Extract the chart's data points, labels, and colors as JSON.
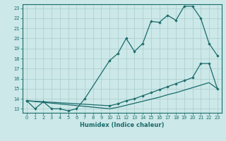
{
  "xlabel": "Humidex (Indice chaleur)",
  "background_color": "#cce8e8",
  "grid_color": "#aacccc",
  "line_color": "#1a6b6b",
  "xlim": [
    -0.5,
    23.5
  ],
  "ylim": [
    12.6,
    23.4
  ],
  "xticks": [
    0,
    1,
    2,
    3,
    4,
    5,
    6,
    7,
    8,
    9,
    10,
    11,
    12,
    13,
    14,
    15,
    16,
    17,
    18,
    19,
    20,
    21,
    22,
    23
  ],
  "yticks": [
    13,
    14,
    15,
    16,
    17,
    18,
    19,
    20,
    21,
    22,
    23
  ],
  "line1_x": [
    0,
    1,
    2,
    3,
    4,
    5,
    6,
    7,
    10,
    11,
    12,
    13,
    14,
    15,
    16,
    17,
    18,
    19,
    20,
    21,
    22,
    23
  ],
  "line1_y": [
    13.8,
    13.0,
    13.7,
    13.0,
    13.0,
    12.8,
    13.0,
    14.0,
    17.8,
    18.5,
    20.0,
    18.7,
    19.5,
    21.7,
    21.6,
    22.3,
    21.8,
    23.2,
    23.2,
    22.0,
    19.5,
    18.3
  ],
  "line2_x": [
    0,
    10,
    11,
    12,
    13,
    14,
    15,
    16,
    17,
    18,
    19,
    20,
    21,
    22,
    23
  ],
  "line2_y": [
    13.8,
    13.3,
    13.5,
    13.8,
    14.0,
    14.3,
    14.6,
    14.9,
    15.2,
    15.5,
    15.8,
    16.1,
    17.5,
    17.5,
    15.0
  ],
  "line3_x": [
    0,
    10,
    11,
    12,
    13,
    14,
    15,
    16,
    17,
    18,
    19,
    20,
    21,
    22,
    23
  ],
  "line3_y": [
    13.8,
    13.0,
    13.15,
    13.35,
    13.55,
    13.75,
    13.95,
    14.15,
    14.4,
    14.6,
    14.85,
    15.1,
    15.35,
    15.6,
    15.0
  ]
}
